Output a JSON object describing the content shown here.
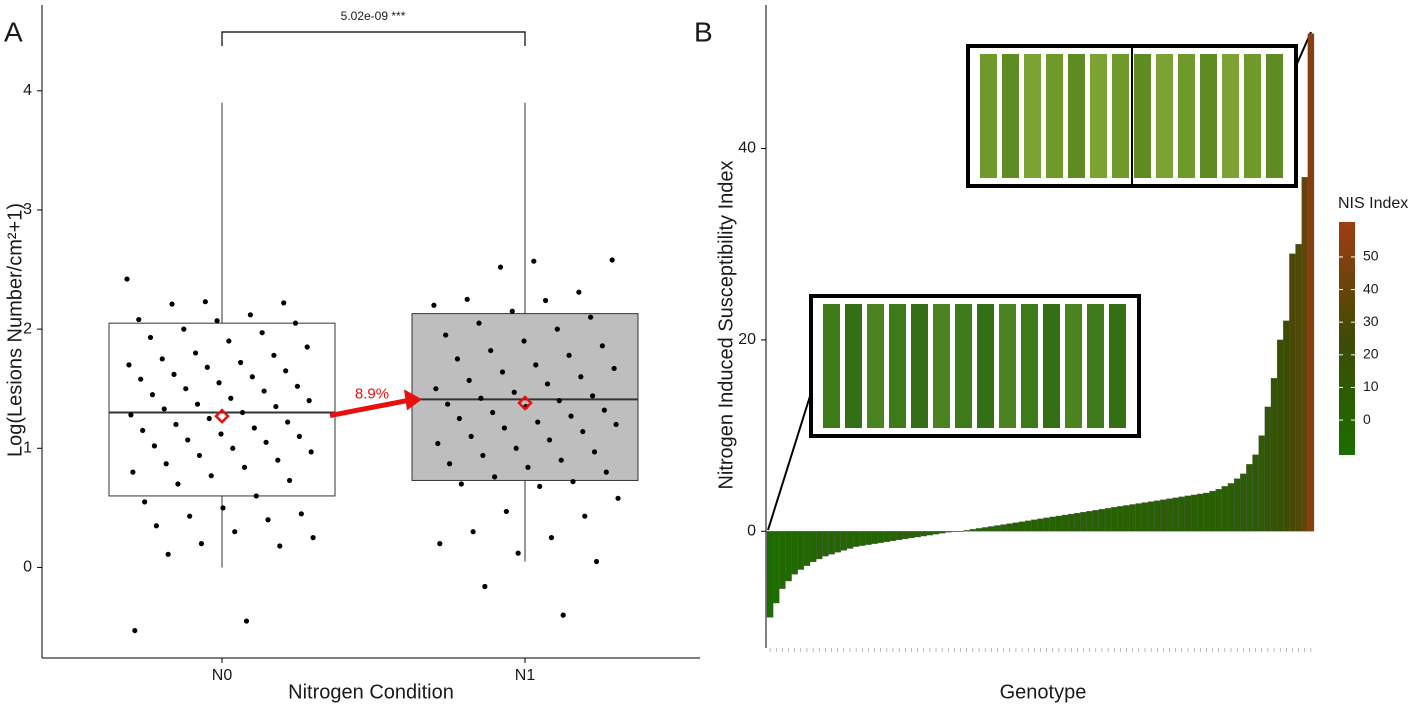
{
  "chart_data": [
    {
      "type": "box",
      "panel_label": "A",
      "x_label": "Nitrogen Condition",
      "y_label": "Log(Lesions Number/cm²+1)",
      "categories": [
        "N0",
        "N1"
      ],
      "boxes": [
        {
          "min": 0,
          "q1": 0.6,
          "median": 1.3,
          "q3": 2.05,
          "max": 3.9,
          "mean": 1.27,
          "fill": "#ffffff",
          "points": [
            2.42,
            2.23,
            2.22,
            2.21,
            2.12,
            2.08,
            2.07,
            2.05,
            2.0,
            1.97,
            1.93,
            1.9,
            1.85,
            1.8,
            1.78,
            1.75,
            1.72,
            1.7,
            1.68,
            1.65,
            1.62,
            1.6,
            1.58,
            1.55,
            1.52,
            1.5,
            1.48,
            1.45,
            1.42,
            1.4,
            1.37,
            1.35,
            1.33,
            1.3,
            1.28,
            1.25,
            1.22,
            1.2,
            1.17,
            1.15,
            1.12,
            1.1,
            1.07,
            1.05,
            1.02,
            1.0,
            0.97,
            0.94,
            0.9,
            0.87,
            0.84,
            0.8,
            0.77,
            0.73,
            0.7,
            0.6,
            0.55,
            0.5,
            0.45,
            0.43,
            0.4,
            0.35,
            0.3,
            0.25,
            0.2,
            0.18,
            0.11,
            -0.45,
            -0.53
          ]
        },
        {
          "min": 0.05,
          "q1": 0.73,
          "median": 1.41,
          "q3": 2.13,
          "max": 3.9,
          "mean": 1.38,
          "fill": "#bebebe",
          "points": [
            2.57,
            2.58,
            2.52,
            2.31,
            2.25,
            2.24,
            2.2,
            2.15,
            2.1,
            2.05,
            2.0,
            1.95,
            1.9,
            1.86,
            1.82,
            1.78,
            1.75,
            1.7,
            1.67,
            1.64,
            1.6,
            1.57,
            1.54,
            1.5,
            1.47,
            1.44,
            1.42,
            1.4,
            1.37,
            1.35,
            1.32,
            1.3,
            1.27,
            1.25,
            1.22,
            1.2,
            1.17,
            1.14,
            1.1,
            1.07,
            1.04,
            1.0,
            0.97,
            0.94,
            0.9,
            0.87,
            0.84,
            0.8,
            0.76,
            0.72,
            0.7,
            0.68,
            0.58,
            0.47,
            0.43,
            0.3,
            0.25,
            0.2,
            0.12,
            0.05,
            -0.16,
            -0.4
          ]
        }
      ],
      "ylim": [
        -0.76,
        4.72
      ],
      "yticks": [
        0,
        1,
        2,
        3,
        4
      ],
      "annotation": "5.02e-09 ***",
      "change_label": "8.9%",
      "mean_color": "#e8100f",
      "point_color": "#000000"
    },
    {
      "type": "bar",
      "panel_label": "B",
      "x_label": "Genotype",
      "y_label": "Nitrogen Induced Susceptibility Index",
      "values": [
        -9,
        -7.5,
        -6,
        -5.2,
        -4.5,
        -4,
        -3.6,
        -3.2,
        -2.9,
        -2.6,
        -2.4,
        -2.2,
        -2,
        -1.8,
        -1.6,
        -1.5,
        -1.4,
        -1.3,
        -1.2,
        -1.1,
        -1,
        -0.9,
        -0.8,
        -0.7,
        -0.6,
        -0.5,
        -0.4,
        -0.3,
        -0.2,
        -0.1,
        0,
        0,
        0.1,
        0.2,
        0.3,
        0.4,
        0.5,
        0.6,
        0.7,
        0.8,
        0.9,
        1,
        1.1,
        1.2,
        1.3,
        1.4,
        1.5,
        1.6,
        1.7,
        1.8,
        1.9,
        2,
        2.1,
        2.2,
        2.3,
        2.4,
        2.5,
        2.6,
        2.7,
        2.8,
        2.9,
        3,
        3.1,
        3.2,
        3.3,
        3.4,
        3.5,
        3.6,
        3.7,
        3.8,
        3.9,
        4,
        4.2,
        4.4,
        4.7,
        5,
        5.5,
        6,
        7,
        8,
        10,
        13,
        16,
        20,
        22,
        29,
        30,
        37,
        52
      ],
      "ylim": [
        -12.2,
        55
      ],
      "yticks": [
        0,
        20,
        40
      ],
      "colorbar": {
        "title": "NIS Index",
        "lim": [
          -10.7,
          60.7
        ],
        "ticks": [
          0,
          10,
          20,
          30,
          40,
          50
        ],
        "colors": [
          "#1b6e00",
          "#3e4a06",
          "#a03c12"
        ]
      }
    }
  ]
}
